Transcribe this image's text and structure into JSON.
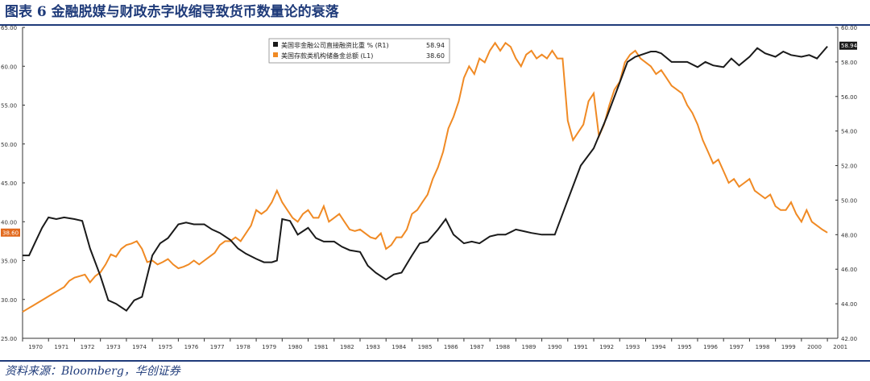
{
  "figure": {
    "title": "图表 6 金融脱媒与财政赤字收缩导致货币数量论的衰落",
    "source": "资料来源：Bloomberg，华创证券"
  },
  "chart_data": {
    "type": "line",
    "x_categories": [
      "1970",
      "1971",
      "1972",
      "1973",
      "1974",
      "1975",
      "1976",
      "1977",
      "1978",
      "1979",
      "1980",
      "1981",
      "1982",
      "1983",
      "1984",
      "1985",
      "1986",
      "1987",
      "1988",
      "1989",
      "1990",
      "1991",
      "1992",
      "1993",
      "1994",
      "1995",
      "1996",
      "1997",
      "1998",
      "1999",
      "2000",
      "2001"
    ],
    "left_axis": {
      "min": 25,
      "max": 65,
      "ticks": [
        "25.00",
        "30.00",
        "35.00",
        "40.00",
        "45.00",
        "50.00",
        "55.00",
        "60.00",
        "65.00"
      ]
    },
    "right_axis": {
      "min": 42,
      "max": 60,
      "ticks": [
        "42.00",
        "44.00",
        "46.00",
        "48.00",
        "50.00",
        "52.00",
        "54.00",
        "56.00",
        "58.00",
        "60.00"
      ]
    },
    "grid": false,
    "legend_position": "top-center",
    "series": [
      {
        "name": "美国非金融公司直接融资比重 % (R1)",
        "last_value": "58.94",
        "axis": "right",
        "color": "#1a1a1a",
        "x": [
          1970.0,
          1970.25,
          1970.5,
          1970.75,
          1971.0,
          1971.3,
          1971.6,
          1972.0,
          1972.3,
          1972.6,
          1973.0,
          1973.3,
          1973.6,
          1974.0,
          1974.3,
          1974.6,
          1975.0,
          1975.3,
          1975.6,
          1976.0,
          1976.3,
          1976.6,
          1977.0,
          1977.3,
          1977.6,
          1978.0,
          1978.3,
          1978.6,
          1979.0,
          1979.3,
          1979.6,
          1979.8,
          1980.0,
          1980.3,
          1980.6,
          1981.0,
          1981.3,
          1981.6,
          1982.0,
          1982.3,
          1982.6,
          1983.0,
          1983.3,
          1983.6,
          1984.0,
          1984.3,
          1984.6,
          1985.0,
          1985.3,
          1985.6,
          1986.0,
          1986.3,
          1986.6,
          1987.0,
          1987.3,
          1987.6,
          1988.0,
          1988.3,
          1988.6,
          1989.0,
          1989.3,
          1989.6,
          1990.0,
          1990.5,
          1991.0,
          1991.5,
          1992.0,
          1992.5,
          1993.0,
          1993.3,
          1993.6,
          1994.0,
          1994.2,
          1994.4,
          1994.6,
          1995.0,
          1995.3,
          1995.6,
          1996.0,
          1996.3,
          1996.6,
          1997.0,
          1997.3,
          1997.6,
          1998.0,
          1998.3,
          1998.6,
          1999.0,
          1999.3,
          1999.6,
          2000.0,
          2000.3,
          2000.6,
          2001.0
        ],
        "y": [
          46.8,
          46.8,
          47.6,
          48.4,
          49.0,
          48.9,
          49.0,
          48.9,
          48.8,
          47.2,
          45.6,
          44.2,
          44.0,
          43.6,
          44.2,
          44.4,
          46.8,
          47.5,
          47.8,
          48.6,
          48.7,
          48.6,
          48.6,
          48.3,
          48.1,
          47.7,
          47.2,
          46.9,
          46.6,
          46.4,
          46.4,
          46.5,
          48.9,
          48.8,
          48.0,
          48.4,
          47.8,
          47.6,
          47.6,
          47.3,
          47.1,
          47.0,
          46.2,
          45.8,
          45.4,
          45.7,
          45.8,
          46.8,
          47.5,
          47.6,
          48.3,
          48.9,
          48.0,
          47.5,
          47.6,
          47.5,
          47.9,
          48.0,
          48.0,
          48.3,
          48.2,
          48.1,
          48.0,
          48.0,
          50.0,
          52.0,
          53.0,
          54.8,
          56.8,
          58.0,
          58.3,
          58.5,
          58.6,
          58.6,
          58.5,
          58.0,
          58.0,
          58.0,
          57.7,
          58.0,
          57.8,
          57.7,
          58.2,
          57.8,
          58.3,
          58.8,
          58.5,
          58.3,
          58.6,
          58.4,
          58.3,
          58.4,
          58.2,
          58.9
        ]
      },
      {
        "name": "美国存款类机构储备金总额 (L1)",
        "last_value": "38.60",
        "axis": "left",
        "color": "#f08a24",
        "x": [
          1970.0,
          1970.2,
          1970.4,
          1970.6,
          1970.8,
          1971.0,
          1971.2,
          1971.4,
          1971.6,
          1971.8,
          1972.0,
          1972.2,
          1972.4,
          1972.6,
          1972.8,
          1973.0,
          1973.2,
          1973.4,
          1973.6,
          1973.8,
          1974.0,
          1974.2,
          1974.4,
          1974.6,
          1974.8,
          1975.0,
          1975.2,
          1975.4,
          1975.6,
          1975.8,
          1976.0,
          1976.2,
          1976.4,
          1976.6,
          1976.8,
          1977.0,
          1977.2,
          1977.4,
          1977.6,
          1977.8,
          1978.0,
          1978.2,
          1978.4,
          1978.6,
          1978.8,
          1979.0,
          1979.2,
          1979.4,
          1979.6,
          1979.8,
          1980.0,
          1980.2,
          1980.4,
          1980.6,
          1980.8,
          1981.0,
          1981.2,
          1981.4,
          1981.6,
          1981.8,
          1982.0,
          1982.2,
          1982.4,
          1982.6,
          1982.8,
          1983.0,
          1983.2,
          1983.4,
          1983.6,
          1983.8,
          1984.0,
          1984.2,
          1984.4,
          1984.6,
          1984.8,
          1985.0,
          1985.2,
          1985.4,
          1985.6,
          1985.8,
          1986.0,
          1986.2,
          1986.4,
          1986.6,
          1986.8,
          1987.0,
          1987.2,
          1987.4,
          1987.6,
          1987.8,
          1988.0,
          1988.2,
          1988.4,
          1988.6,
          1988.8,
          1989.0,
          1989.2,
          1989.4,
          1989.6,
          1989.8,
          1990.0,
          1990.2,
          1990.4,
          1990.6,
          1990.8,
          1991.0,
          1991.2,
          1991.4,
          1991.6,
          1991.8,
          1992.0,
          1992.2,
          1992.4,
          1992.6,
          1992.8,
          1993.0,
          1993.2,
          1993.4,
          1993.6,
          1993.8,
          1994.0,
          1994.2,
          1994.4,
          1994.6,
          1994.8,
          1995.0,
          1995.2,
          1995.4,
          1995.6,
          1995.8,
          1996.0,
          1996.2,
          1996.4,
          1996.6,
          1996.8,
          1997.0,
          1997.2,
          1997.4,
          1997.6,
          1997.8,
          1998.0,
          1998.2,
          1998.4,
          1998.6,
          1998.8,
          1999.0,
          1999.2,
          1999.4,
          1999.6,
          1999.8,
          2000.0,
          2000.2,
          2000.4,
          2000.6,
          2000.8,
          2001.0
        ],
        "y": [
          28.4,
          28.8,
          29.2,
          29.6,
          30.0,
          30.4,
          30.8,
          31.2,
          31.6,
          32.4,
          32.8,
          33.0,
          33.2,
          32.2,
          33.0,
          33.5,
          34.5,
          35.8,
          35.5,
          36.5,
          37.0,
          37.2,
          37.5,
          36.5,
          34.8,
          35.0,
          34.5,
          34.8,
          35.2,
          34.5,
          34.0,
          34.2,
          34.5,
          35.0,
          34.5,
          35.0,
          35.5,
          36.0,
          37.0,
          37.5,
          37.5,
          38.0,
          37.5,
          38.5,
          39.5,
          41.5,
          41.0,
          41.5,
          42.5,
          44.0,
          42.5,
          41.5,
          40.5,
          40.0,
          41.0,
          41.5,
          40.5,
          40.5,
          42.0,
          40.0,
          40.5,
          41.0,
          40.0,
          39.0,
          38.8,
          39.0,
          38.5,
          38.0,
          37.8,
          38.5,
          36.5,
          37.0,
          38.0,
          38.0,
          39.0,
          41.0,
          41.5,
          42.5,
          43.5,
          45.5,
          47.0,
          49.0,
          52.0,
          53.5,
          55.5,
          58.5,
          60.0,
          59.0,
          61.0,
          60.5,
          62.0,
          63.0,
          62.0,
          63.0,
          62.5,
          61.0,
          60.0,
          61.5,
          62.0,
          61.0,
          61.5,
          61.0,
          62.0,
          61.0,
          61.0,
          53.0,
          50.5,
          51.5,
          52.5,
          55.5,
          56.5,
          51.0,
          52.5,
          55.0,
          57.0,
          58.0,
          60.5,
          61.5,
          62.0,
          61.0,
          60.5,
          60.0,
          59.0,
          59.5,
          58.5,
          57.5,
          57.0,
          56.5,
          55.0,
          54.0,
          52.5,
          50.5,
          49.0,
          47.5,
          48.0,
          46.5,
          45.0,
          45.5,
          44.5,
          45.0,
          45.5,
          44.0,
          43.5,
          43.0,
          43.5,
          42.0,
          41.5,
          41.5,
          42.5,
          41.0,
          40.0,
          41.5,
          40.0,
          39.5,
          39.0,
          38.6
        ]
      }
    ]
  }
}
